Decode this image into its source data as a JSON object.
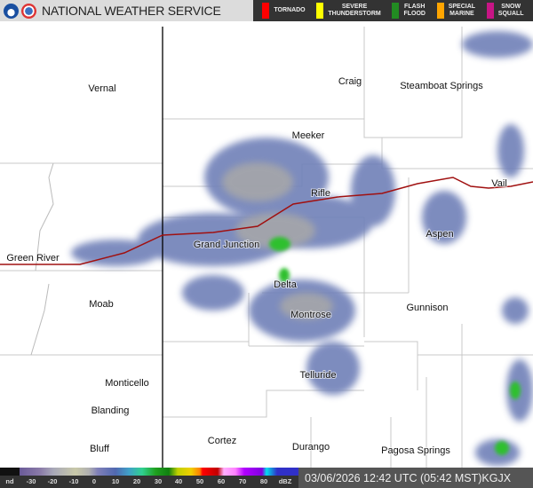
{
  "header": {
    "title": "NATIONAL WEATHER SERVICE",
    "logos": [
      "noaa-logo",
      "nws-logo"
    ]
  },
  "warnings": [
    {
      "label": "TORNADO",
      "color": "#ff0000"
    },
    {
      "label": "SEVERE\nTHUNDERSTORM",
      "color": "#ffff00"
    },
    {
      "label": "FLASH\nFLOOD",
      "color": "#228b22"
    },
    {
      "label": "SPECIAL\nMARINE",
      "color": "#ffa500"
    },
    {
      "label": "SNOW\nSQUALL",
      "color": "#c71585"
    }
  ],
  "cities": [
    "Vernal",
    "Craig",
    "Steamboat Springs",
    "Meeker",
    "Rifle",
    "Vail",
    "Grand Junction",
    "Aspen",
    "Green River",
    "Delta",
    "Moab",
    "Gunnison",
    "Montrose",
    "Telluride",
    "Monticello",
    "Blanding",
    "Bluff",
    "Cortez",
    "Durango",
    "Pagosa Springs"
  ],
  "legend": {
    "ticks": [
      "nd",
      "-30",
      "-20",
      "-10",
      "0",
      "10",
      "20",
      "30",
      "40",
      "50",
      "60",
      "70",
      "80",
      "dBZ"
    ]
  },
  "status": {
    "timestamp": "03/06/2026 12:42 UTC (05:42 MST)",
    "station": "KGJX"
  },
  "colors": {
    "radar_light": "#7080b8",
    "radar_gray": "#a8a8a8",
    "radar_green": "#2fc02f",
    "interstate": "#a01010"
  }
}
